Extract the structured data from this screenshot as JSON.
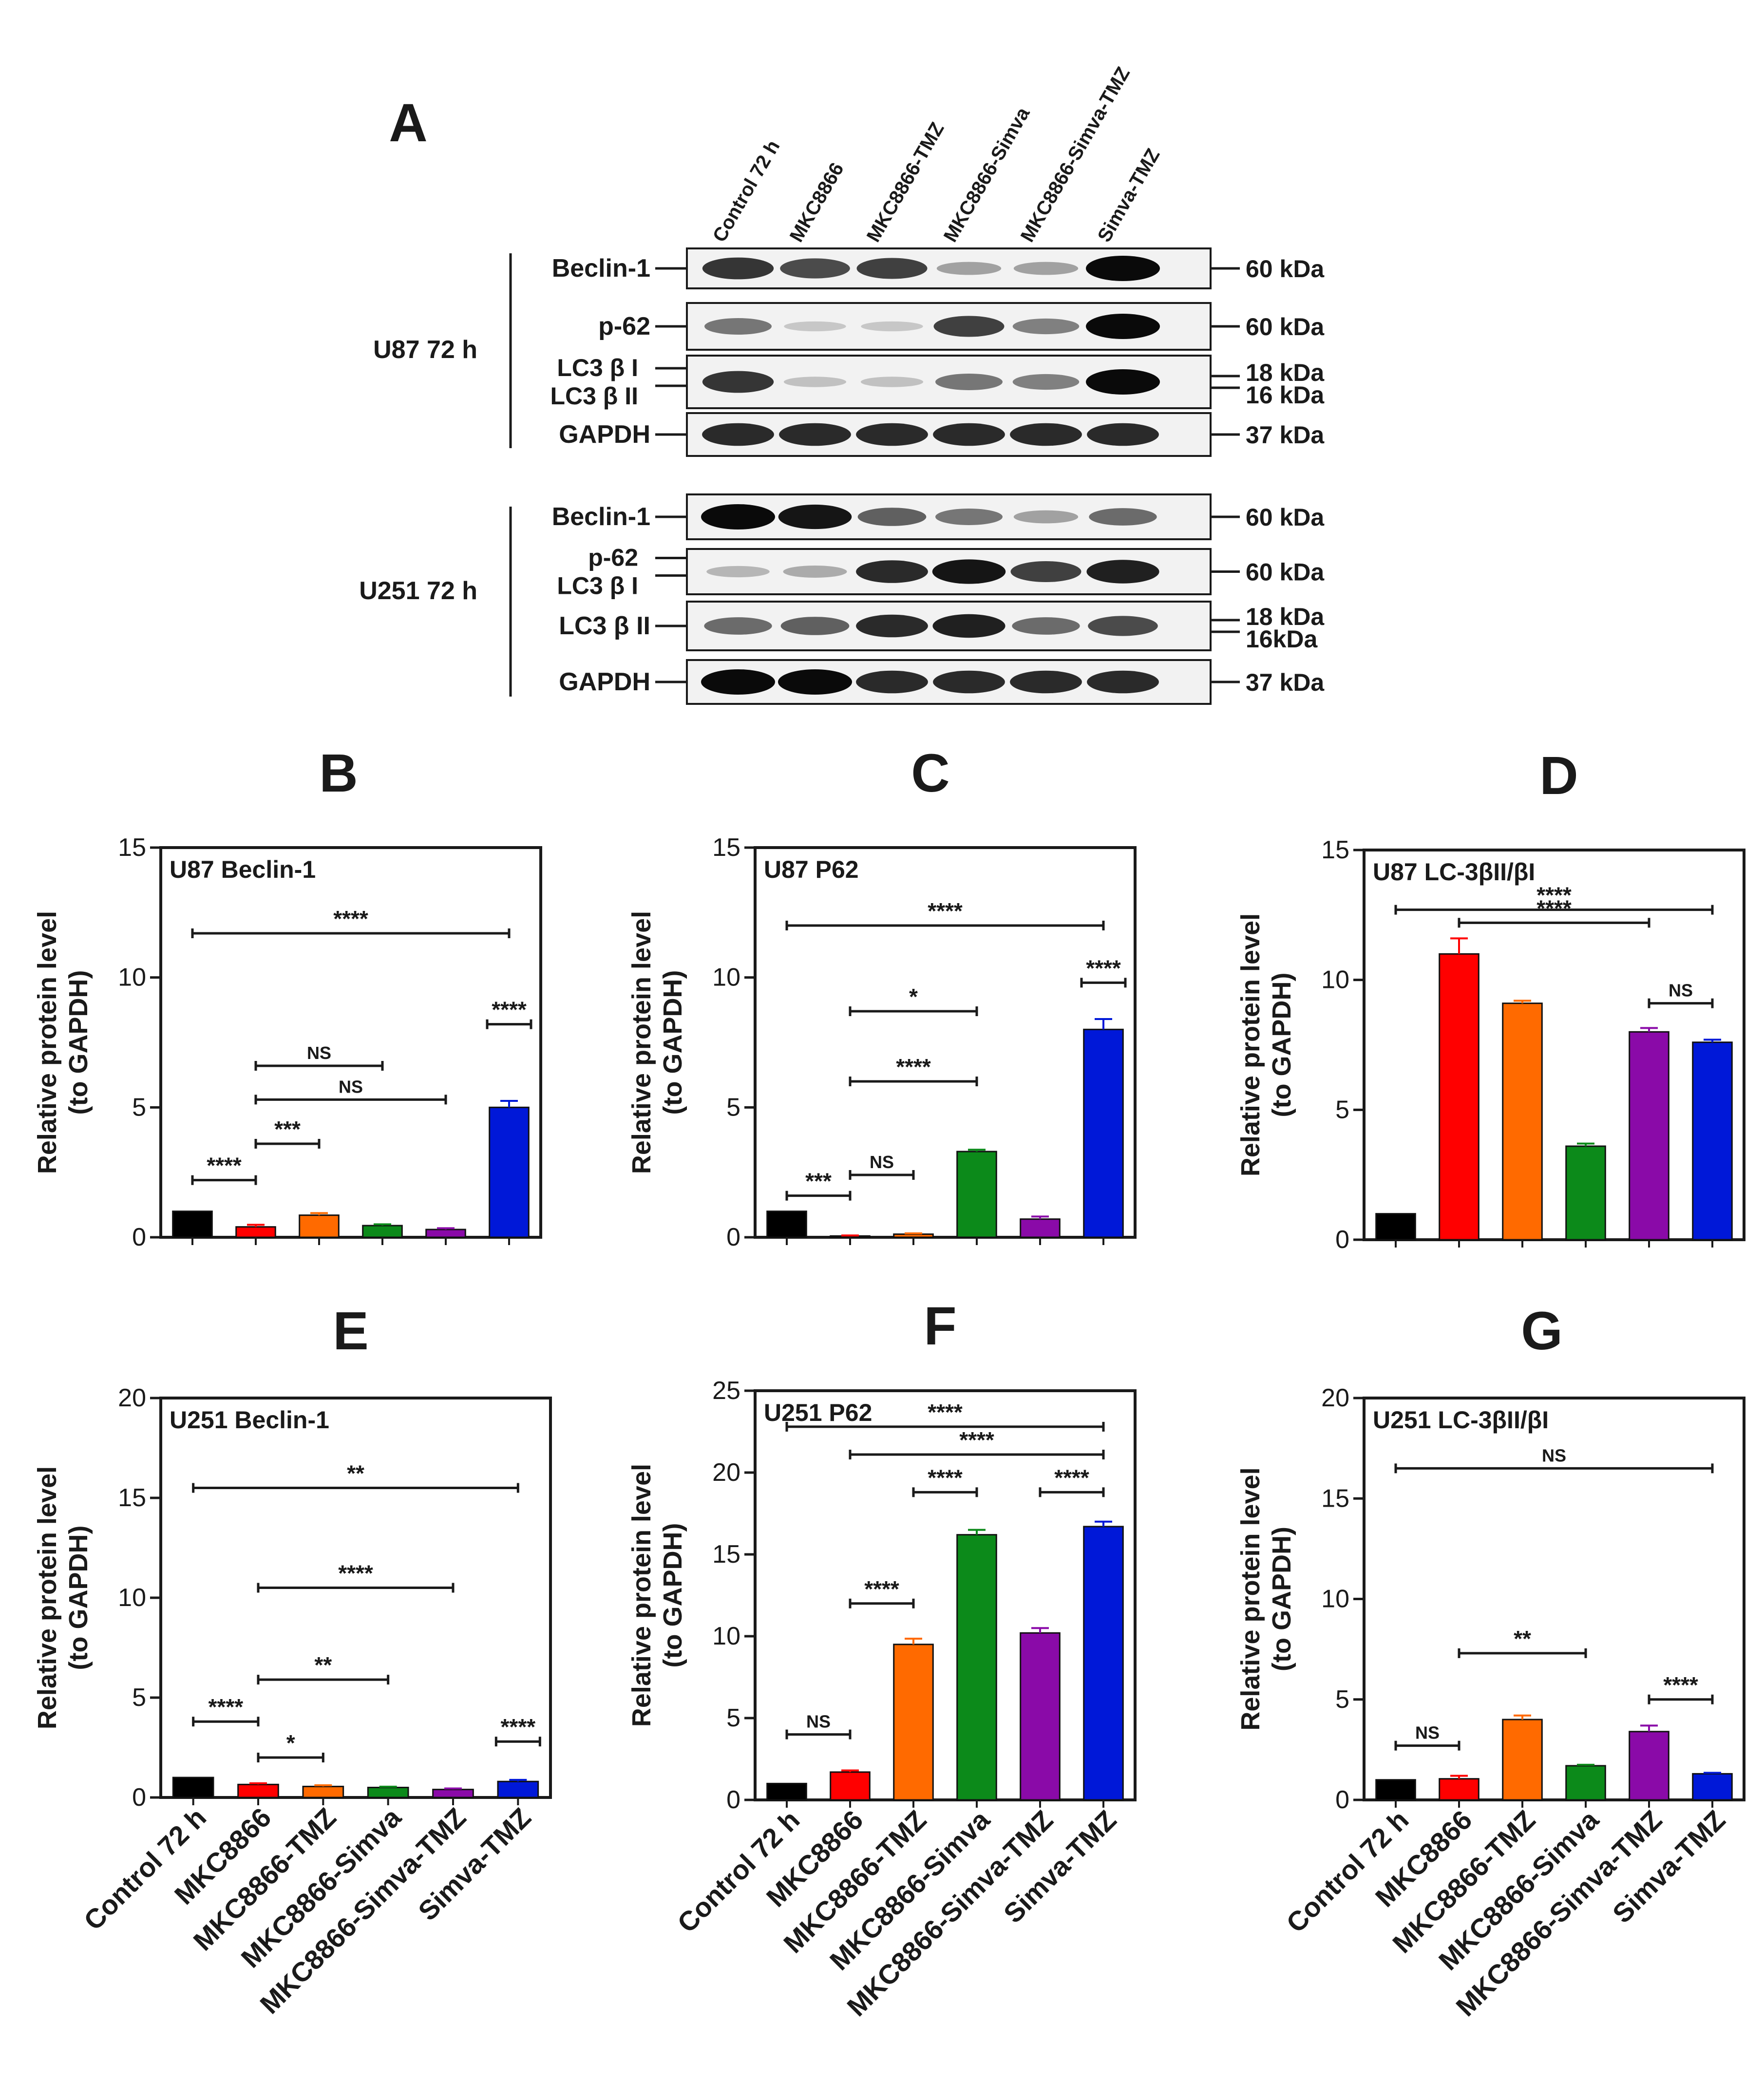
{
  "colors": {
    "axis": "#1a1a1a",
    "bars": [
      "#000000",
      "#ff0000",
      "#ff6a00",
      "#0c8a1a",
      "#8a0aa8",
      "#0018d8"
    ]
  },
  "blot": {
    "panel_label": "A",
    "lanes": [
      "Control 72 h",
      "MKC8866",
      "MKC8866-TMZ",
      "MKC8866-Simva",
      "MKC8866-Simva-TMZ",
      "Simva-TMZ"
    ],
    "groups": [
      {
        "cell_line": "U87 72 h",
        "strips": [
          {
            "protein": "Beclin-1",
            "kda": "60 kDa",
            "intensity": [
              0.8,
              0.7,
              0.75,
              0.3,
              0.3,
              1.0
            ]
          },
          {
            "protein": "p-62",
            "kda": "60 kDa",
            "intensity": [
              0.5,
              0.12,
              0.12,
              0.75,
              0.45,
              1.0
            ]
          },
          {
            "protein": "LC3 β I",
            "protein2": "LC3 β II",
            "kda": "18 kDa",
            "kda2": "16 kDa",
            "intensity": [
              0.8,
              0.15,
              0.15,
              0.5,
              0.45,
              1.0
            ]
          },
          {
            "protein": "GAPDH",
            "kda": "37 kDa",
            "intensity": [
              0.85,
              0.85,
              0.85,
              0.85,
              0.85,
              0.85
            ]
          }
        ]
      },
      {
        "cell_line": "U251 72 h",
        "strips": [
          {
            "protein": "Beclin-1",
            "kda": "60 kDa",
            "intensity": [
              1.0,
              0.95,
              0.6,
              0.5,
              0.3,
              0.55
            ]
          },
          {
            "protein": "p-62",
            "protein2": "LC3 β I",
            "kda": "60 kDa",
            "intensity": [
              0.2,
              0.25,
              0.85,
              0.95,
              0.75,
              0.9
            ]
          },
          {
            "protein": "LC3 β II",
            "kda": "18 kDa",
            "kda2": "16kDa",
            "intensity": [
              0.55,
              0.6,
              0.85,
              0.9,
              0.55,
              0.7
            ]
          },
          {
            "protein": "GAPDH",
            "kda": "37 kDa",
            "intensity": [
              1.0,
              1.0,
              0.85,
              0.85,
              0.85,
              0.85
            ]
          }
        ]
      }
    ]
  },
  "y_axis_label": [
    "Relative protein level",
    "(to GAPDH)"
  ],
  "chart_data": [
    {
      "panel": "B",
      "type": "bar",
      "title": "U87 Beclin-1",
      "categories": [
        "Control 72 h",
        "MKC8866",
        "MKC8866-TMZ",
        "MKC8866-Simva",
        "MKC8866-Simva-TMZ",
        "Simva-TMZ"
      ],
      "values": [
        1.0,
        0.4,
        0.85,
        0.45,
        0.3,
        5.0
      ],
      "errors": [
        0,
        0.08,
        0.08,
        0.05,
        0.05,
        0.25
      ],
      "ylim": [
        0,
        15
      ],
      "yticks": [
        0,
        5,
        10,
        15
      ],
      "ylabel": "Relative protein level (to GAPDH)",
      "xlabel_shown": false,
      "brackets": [
        {
          "from": 0,
          "to": 5,
          "y": 11.7,
          "label": "****"
        },
        {
          "from": 5,
          "to": 5,
          "y": 8.2,
          "label": "****"
        },
        {
          "from": 1,
          "to": 3,
          "y": 6.6,
          "label": "NS"
        },
        {
          "from": 1,
          "to": 4,
          "y": 5.3,
          "label": "NS"
        },
        {
          "from": 1,
          "to": 2,
          "y": 3.6,
          "label": "***"
        },
        {
          "from": 0,
          "to": 1,
          "y": 2.2,
          "label": "****"
        }
      ]
    },
    {
      "panel": "C",
      "type": "bar",
      "title": "U87  P62",
      "categories": [
        "Control 72 h",
        "MKC8866",
        "MKC8866-TMZ",
        "MKC8866-Simva",
        "MKC8866-Simva-TMZ",
        "Simva-TMZ"
      ],
      "values": [
        1.0,
        0.05,
        0.12,
        3.3,
        0.7,
        8.0
      ],
      "errors": [
        0,
        0.02,
        0.03,
        0.07,
        0.1,
        0.4
      ],
      "ylim": [
        0,
        15
      ],
      "yticks": [
        0,
        5,
        10,
        15
      ],
      "ylabel": "Relative protein level (to GAPDH)",
      "xlabel_shown": false,
      "brackets": [
        {
          "from": 0,
          "to": 5,
          "y": 12.0,
          "label": "****"
        },
        {
          "from": 5,
          "to": 5,
          "y": 9.8,
          "label": "****"
        },
        {
          "from": 1,
          "to": 3,
          "y": 8.7,
          "label": "*"
        },
        {
          "from": 1,
          "to": 3,
          "y": 6.0,
          "label": "****"
        },
        {
          "from": 1,
          "to": 2,
          "y": 2.4,
          "label": "NS"
        },
        {
          "from": 0,
          "to": 1,
          "y": 1.6,
          "label": "***"
        }
      ]
    },
    {
      "panel": "D",
      "type": "bar",
      "title": "U87  LC-3βII/βI",
      "categories": [
        "Control 72 h",
        "MKC8866",
        "MKC8866-TMZ",
        "MKC8866-Simva",
        "MKC8866-Simva-TMZ",
        "Simva-TMZ"
      ],
      "values": [
        1.0,
        11.0,
        9.1,
        3.6,
        8.0,
        7.6
      ],
      "errors": [
        0,
        0.6,
        0.1,
        0.1,
        0.15,
        0.1
      ],
      "ylim": [
        0,
        15
      ],
      "yticks": [
        0,
        5,
        10,
        15
      ],
      "ylabel": "Relative protein level (to GAPDH)",
      "xlabel_shown": false,
      "brackets": [
        {
          "from": 0,
          "to": 5,
          "y": 12.7,
          "label": "****"
        },
        {
          "from": 1,
          "to": 4,
          "y": 12.2,
          "label": "****"
        },
        {
          "from": 4,
          "to": 5,
          "y": 9.1,
          "label": "NS"
        }
      ]
    },
    {
      "panel": "E",
      "type": "bar",
      "title": "U251  Beclin-1",
      "categories": [
        "Control 72 h",
        "MKC8866",
        "MKC8866-TMZ",
        "MKC8866-Simva",
        "MKC8866-Simva-TMZ",
        "Simva-TMZ"
      ],
      "values": [
        1.0,
        0.65,
        0.55,
        0.5,
        0.4,
        0.8
      ],
      "errors": [
        0,
        0.06,
        0.06,
        0.04,
        0.05,
        0.08
      ],
      "ylim": [
        0,
        20
      ],
      "yticks": [
        0,
        5,
        10,
        15,
        20
      ],
      "ylabel": "Relative protein level (to GAPDH)",
      "xlabel_shown": true,
      "brackets": [
        {
          "from": 0,
          "to": 5,
          "y": 15.5,
          "label": "**"
        },
        {
          "from": 1,
          "to": 4,
          "y": 10.5,
          "label": "****"
        },
        {
          "from": 1,
          "to": 3,
          "y": 5.9,
          "label": "**"
        },
        {
          "from": 0,
          "to": 1,
          "y": 3.8,
          "label": "****"
        },
        {
          "from": 5,
          "to": 5,
          "y": 2.8,
          "label": "****"
        },
        {
          "from": 1,
          "to": 2,
          "y": 2.0,
          "label": "*"
        }
      ]
    },
    {
      "panel": "F",
      "type": "bar",
      "title": "U251 P62",
      "categories": [
        "Control 72 h",
        "MKC8866",
        "MKC8866-TMZ",
        "MKC8866-Simva",
        "MKC8866-Simva-TMZ",
        "Simva-TMZ"
      ],
      "values": [
        1.0,
        1.7,
        9.5,
        16.2,
        10.2,
        16.7
      ],
      "errors": [
        0,
        0.1,
        0.35,
        0.3,
        0.3,
        0.3
      ],
      "ylim": [
        0,
        25
      ],
      "yticks": [
        0,
        5,
        10,
        15,
        20,
        25
      ],
      "ylabel": "Relative protein level (to GAPDH)",
      "xlabel_shown": true,
      "brackets": [
        {
          "from": 0,
          "to": 5,
          "y": 22.8,
          "label": "****"
        },
        {
          "from": 1,
          "to": 5,
          "y": 21.1,
          "label": "****"
        },
        {
          "from": 2,
          "to": 3,
          "y": 18.8,
          "label": "****"
        },
        {
          "from": 4,
          "to": 5,
          "y": 18.8,
          "label": "****"
        },
        {
          "from": 1,
          "to": 2,
          "y": 12.0,
          "label": "****"
        },
        {
          "from": 0,
          "to": 1,
          "y": 4.0,
          "label": "NS"
        }
      ]
    },
    {
      "panel": "G",
      "type": "bar",
      "title": "U251  LC-3βII/βI",
      "categories": [
        "Control 72 h",
        "MKC8866",
        "MKC8866-TMZ",
        "MKC8866-Simva",
        "MKC8866-Simva-TMZ",
        "Simva-TMZ"
      ],
      "values": [
        1.0,
        1.05,
        4.0,
        1.7,
        3.4,
        1.3
      ],
      "errors": [
        0,
        0.15,
        0.2,
        0.05,
        0.3,
        0.05
      ],
      "ylim": [
        0,
        20
      ],
      "yticks": [
        0,
        5,
        10,
        15,
        20
      ],
      "ylabel": "Relative protein level (to GAPDH)",
      "xlabel_shown": true,
      "brackets": [
        {
          "from": 0,
          "to": 5,
          "y": 16.5,
          "label": "NS"
        },
        {
          "from": 1,
          "to": 3,
          "y": 7.3,
          "label": "**"
        },
        {
          "from": 4,
          "to": 5,
          "y": 5.0,
          "label": "****"
        },
        {
          "from": 0,
          "to": 1,
          "y": 2.7,
          "label": "NS"
        }
      ]
    }
  ]
}
